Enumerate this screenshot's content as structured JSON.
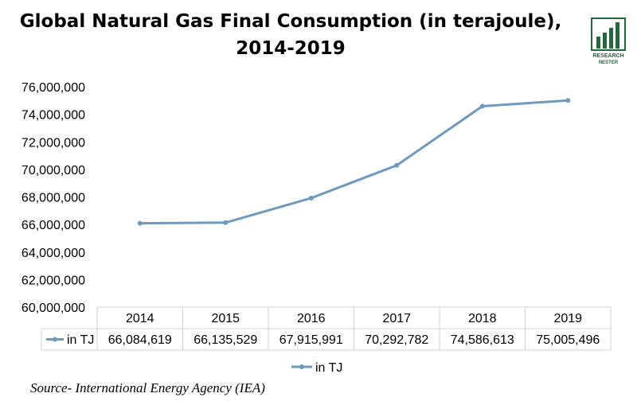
{
  "title_line1": "Global Natural Gas Final Consumption (in terajoule),",
  "title_line2": "2014-2019",
  "logo": {
    "text_line1": "RESEARCH",
    "text_line2": "NESTER",
    "icon": "bar-chart-logo",
    "color": "#1e6b3a"
  },
  "source": "Source- International Energy Agency (IEA)",
  "chart_data": {
    "type": "line",
    "title": "Global Natural Gas Final Consumption (in terajoule), 2014-2019",
    "categories": [
      "2014",
      "2015",
      "2016",
      "2017",
      "2018",
      "2019"
    ],
    "series": [
      {
        "name": "in TJ",
        "values": [
          66084619,
          66135529,
          67915991,
          70292782,
          74586613,
          75005496
        ],
        "labels": [
          "66,084,619",
          "66,135,529",
          "67,915,991",
          "70,292,782",
          "74,586,613",
          "75,005,496"
        ]
      }
    ],
    "ylim": [
      60000000,
      76000000
    ],
    "yticks": [
      "60,000,000",
      "62,000,000",
      "64,000,000",
      "66,000,000",
      "68,000,000",
      "70,000,000",
      "72,000,000",
      "74,000,000",
      "76,000,000"
    ],
    "legend_position": "bottom",
    "line_color": "#6f9ac0",
    "has_data_table": true
  }
}
